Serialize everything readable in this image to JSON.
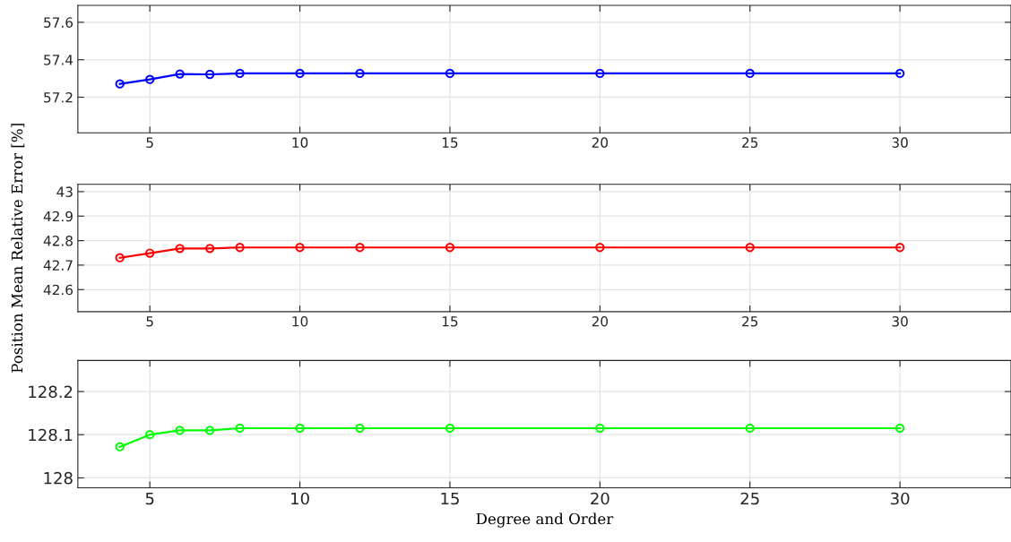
{
  "chart_data": [
    {
      "type": "line",
      "x": [
        4,
        5,
        6,
        7,
        8,
        10,
        12,
        15,
        20,
        25,
        30
      ],
      "series": [
        {
          "color": "#0000ff",
          "values": [
            57.271,
            57.295,
            57.324,
            57.322,
            57.327,
            57.327,
            57.327,
            57.327,
            57.327,
            57.327,
            57.327
          ]
        }
      ],
      "xlim": [
        2.6,
        33.7
      ],
      "xticks": [
        5,
        10,
        15,
        20,
        25,
        30
      ],
      "ylim": [
        57.01,
        57.69
      ],
      "yticks": [
        57.2,
        57.4,
        57.6
      ],
      "grid": true,
      "marker": "circle",
      "line_style": "solid"
    },
    {
      "type": "line",
      "x": [
        4,
        5,
        6,
        7,
        8,
        10,
        12,
        15,
        20,
        25,
        30
      ],
      "series": [
        {
          "color": "#ff0000",
          "values": [
            42.73,
            42.749,
            42.768,
            42.768,
            42.772,
            42.772,
            42.772,
            42.772,
            42.772,
            42.772,
            42.772
          ]
        }
      ],
      "xlim": [
        2.6,
        33.7
      ],
      "xticks": [
        5,
        10,
        15,
        20,
        25,
        30
      ],
      "ylim": [
        42.51,
        43.03
      ],
      "yticks": [
        42.6,
        42.7,
        42.8,
        42.9,
        43
      ],
      "ylabel": "Position Mean Relative Error [%]",
      "grid": true,
      "marker": "circle",
      "line_style": "solid"
    },
    {
      "type": "line",
      "x": [
        4,
        5,
        6,
        7,
        8,
        10,
        12,
        15,
        20,
        25,
        30
      ],
      "series": [
        {
          "color": "#00ff00",
          "values": [
            128.072,
            128.1,
            128.11,
            128.11,
            128.115,
            128.115,
            128.115,
            128.115,
            128.115,
            128.115,
            128.115
          ]
        }
      ],
      "xlim": [
        2.6,
        33.7
      ],
      "xticks": [
        5,
        10,
        15,
        20,
        25,
        30
      ],
      "ylim": [
        127.977,
        128.272
      ],
      "yticks": [
        128,
        128.1,
        128.2
      ],
      "xlabel": "Degree and Order",
      "grid": true,
      "marker": "circle",
      "line_style": "solid"
    }
  ]
}
